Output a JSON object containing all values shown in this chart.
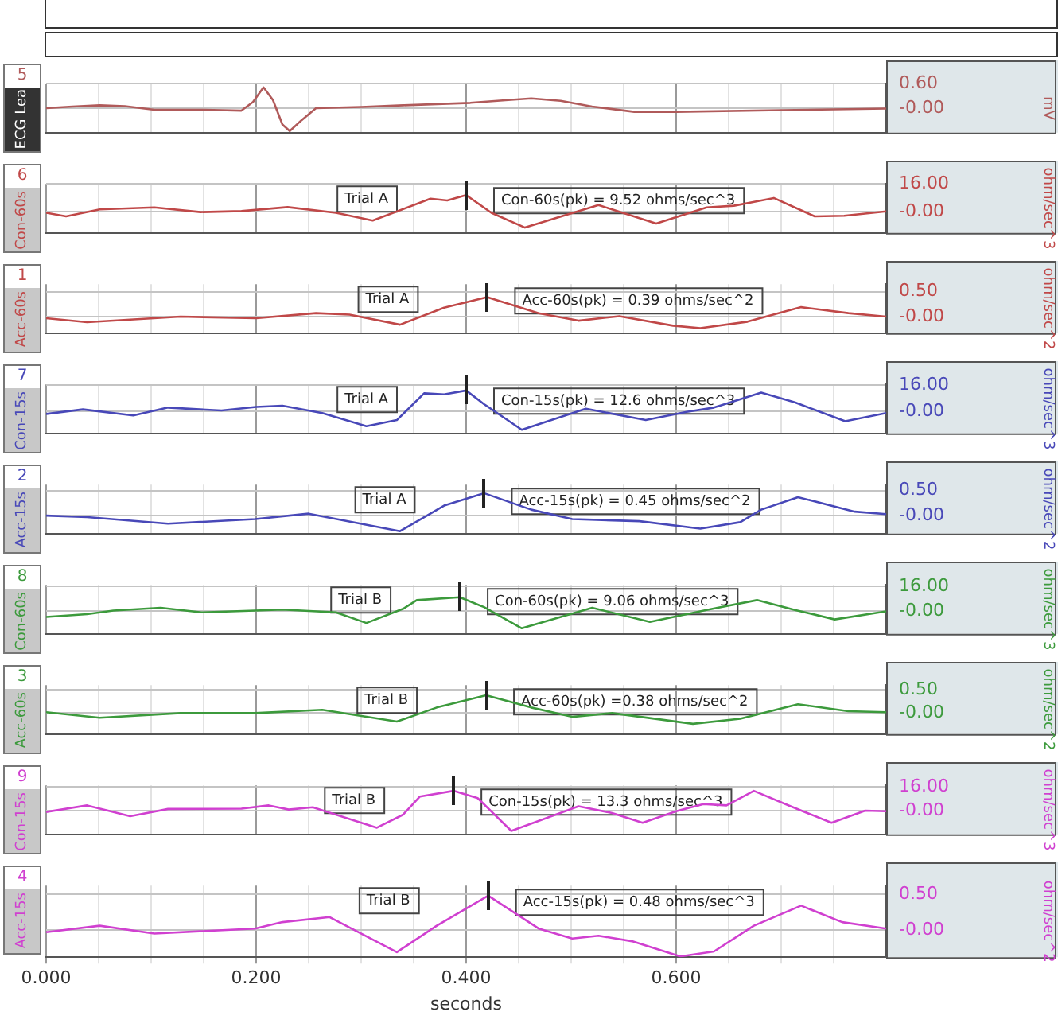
{
  "chart_data": [
    {
      "type": "line",
      "title": "5",
      "ylabel": "mV",
      "legend": "left",
      "grid": true,
      "tick_labels": "y",
      "marker": "none",
      "xlim": [
        0,
        0.8
      ],
      "xticks": [
        0,
        0.05,
        0.1,
        0.15,
        0.2,
        0.25,
        0.3,
        0.35,
        0.4,
        0.45,
        0.5,
        0.55,
        0.6,
        0.65,
        0.7,
        0.75
      ],
      "ylim": [
        -0.6,
        0.6
      ],
      "yticks": [
        {
          "value": 0,
          "label": "-0.00"
        },
        {
          "value": 0.6,
          "label": "0.60"
        }
      ],
      "series": [
        {
          "name": "ECG Lea",
          "color": "#b05a5a",
          "x": [
            0,
            0.025,
            0.051,
            0.075,
            0.103,
            0.15,
            0.186,
            0.197,
            0.207,
            0.216,
            0.225,
            0.232,
            0.243,
            0.257,
            0.3,
            0.34,
            0.404,
            0.44,
            0.462,
            0.49,
            0.52,
            0.56,
            0.6,
            0.7,
            0.8
          ],
          "values": [
            0,
            0.04,
            0.07,
            0.05,
            -0.04,
            -0.04,
            -0.06,
            0.15,
            0.51,
            0.2,
            -0.4,
            -0.56,
            -0.3,
            0,
            0.03,
            0.07,
            0.13,
            0.2,
            0.24,
            0.18,
            0.04,
            -0.09,
            -0.09,
            -0.05,
            -0.01
          ]
        }
      ]
    },
    {
      "type": "line",
      "title": "6",
      "ylabel": "ohm/sec^3",
      "legend": "left",
      "grid": true,
      "tick_labels": "y",
      "marker": "none",
      "xlim": [
        0,
        0.8
      ],
      "xticks": [
        0,
        0.05,
        0.1,
        0.15,
        0.2,
        0.25,
        0.3,
        0.35,
        0.4,
        0.45,
        0.5,
        0.55,
        0.6,
        0.65,
        0.7,
        0.75
      ],
      "ylim": [
        -12.5,
        16
      ],
      "yticks": [
        {
          "value": 0,
          "label": "-0.00"
        },
        {
          "value": 16,
          "label": "16.00"
        }
      ],
      "annotations": [
        "Trial A",
        {
          "text": "Con-60s(pk) = 9.52 ohms/sec^3",
          "x": 0.4,
          "y": 9.52
        }
      ],
      "series": [
        {
          "name": "Con-60s",
          "color": "#c04848",
          "x": [
            0,
            0.019,
            0.051,
            0.103,
            0.147,
            0.186,
            0.23,
            0.276,
            0.311,
            0.366,
            0.382,
            0.4,
            0.424,
            0.456,
            0.526,
            0.581,
            0.629,
            0.655,
            0.693,
            0.732,
            0.76,
            0.8
          ],
          "values": [
            -0.8,
            -2.9,
            1.2,
            2.3,
            -0.4,
            0.2,
            2.5,
            -0.8,
            -5.3,
            7.4,
            6.4,
            9.52,
            -0.8,
            -9.4,
            3.7,
            -7,
            2.3,
            3.3,
            7.8,
            -2.9,
            -2.5,
            0
          ]
        }
      ]
    },
    {
      "type": "line",
      "title": "1",
      "ylabel": "ohm/sec^2",
      "legend": "left",
      "grid": true,
      "tick_labels": "y",
      "marker": "none",
      "xlim": [
        0,
        0.8
      ],
      "xticks": [
        0,
        0.05,
        0.1,
        0.15,
        0.2,
        0.25,
        0.3,
        0.35,
        0.4,
        0.45,
        0.5,
        0.55,
        0.6,
        0.65,
        0.7,
        0.75
      ],
      "ylim": [
        -0.33,
        0.65
      ],
      "yticks": [
        {
          "value": 0,
          "label": "-0.00"
        },
        {
          "value": 0.5,
          "label": "0.50"
        }
      ],
      "annotations": [
        "Trial A",
        {
          "text": "Acc-60s(pk) = 0.39 ohms/sec^2",
          "x": 0.42,
          "y": 0.39
        }
      ],
      "series": [
        {
          "name": "Acc-60s",
          "color": "#c04848",
          "x": [
            0,
            0.039,
            0.128,
            0.2,
            0.257,
            0.289,
            0.337,
            0.379,
            0.42,
            0.469,
            0.507,
            0.546,
            0.597,
            0.623,
            0.668,
            0.719,
            0.764,
            0.8
          ],
          "values": [
            -0.03,
            -0.11,
            0,
            -0.03,
            0.07,
            0.04,
            -0.16,
            0.18,
            0.39,
            0.07,
            -0.08,
            0.01,
            -0.18,
            -0.23,
            -0.1,
            0.19,
            0.07,
            0
          ]
        }
      ]
    },
    {
      "type": "line",
      "title": "7",
      "ylabel": "ohm/sec^3",
      "legend": "left",
      "grid": true,
      "tick_labels": "y",
      "marker": "none",
      "xlim": [
        0,
        0.8
      ],
      "xticks": [
        0,
        0.05,
        0.1,
        0.15,
        0.2,
        0.25,
        0.3,
        0.35,
        0.4,
        0.45,
        0.5,
        0.55,
        0.6,
        0.65,
        0.7,
        0.75
      ],
      "ylim": [
        -13.5,
        16.3
      ],
      "yticks": [
        {
          "value": 0,
          "label": "-0.00"
        },
        {
          "value": 16,
          "label": "16.00"
        }
      ],
      "annotations": [
        "Trial A",
        {
          "text": "Con-15s(pk) = 12.6 ohms/sec^3",
          "x": 0.4,
          "y": 12.6
        }
      ],
      "series": [
        {
          "name": "Con-15s",
          "color": "#4848b8",
          "x": [
            0,
            0.035,
            0.083,
            0.116,
            0.167,
            0.2,
            0.225,
            0.263,
            0.305,
            0.334,
            0.36,
            0.379,
            0.4,
            0.417,
            0.453,
            0.514,
            0.571,
            0.61,
            0.636,
            0.681,
            0.713,
            0.761,
            0.8
          ],
          "values": [
            -1.7,
            1.1,
            -2.6,
            2.2,
            0.4,
            2.6,
            3.3,
            -1.1,
            -9.1,
            -5.4,
            10.9,
            10.2,
            12.6,
            4.3,
            -11.3,
            1.5,
            -5.4,
            -0.4,
            2.2,
            11.3,
            5.4,
            -6.1,
            -1.1
          ]
        }
      ]
    },
    {
      "type": "line",
      "title": "2",
      "ylabel": "ohm/sec^2",
      "legend": "left",
      "grid": true,
      "tick_labels": "y",
      "marker": "none",
      "xlim": [
        0,
        0.8
      ],
      "xticks": [
        0,
        0.05,
        0.1,
        0.15,
        0.2,
        0.25,
        0.3,
        0.35,
        0.4,
        0.45,
        0.5,
        0.55,
        0.6,
        0.65,
        0.7,
        0.75
      ],
      "ylim": [
        -0.36,
        0.62
      ],
      "yticks": [
        {
          "value": 0,
          "label": "-0.00"
        },
        {
          "value": 0.5,
          "label": "0.50"
        }
      ],
      "annotations": [
        "Trial A",
        {
          "text": "Acc-15s(pk) = 0.45 ohms/sec^2",
          "x": 0.417,
          "y": 0.45
        }
      ],
      "series": [
        {
          "name": "Acc-15s",
          "color": "#4848b8",
          "x": [
            0,
            0.039,
            0.116,
            0.199,
            0.25,
            0.337,
            0.379,
            0.417,
            0.462,
            0.501,
            0.565,
            0.623,
            0.661,
            0.681,
            0.716,
            0.77,
            0.8
          ],
          "values": [
            0,
            -0.03,
            -0.16,
            -0.07,
            0.04,
            -0.31,
            0.2,
            0.45,
            0.12,
            -0.07,
            -0.11,
            -0.26,
            -0.13,
            0.12,
            0.37,
            0.08,
            0.03
          ]
        }
      ]
    },
    {
      "type": "line",
      "title": "8",
      "ylabel": "ohm/sec^3",
      "legend": "left",
      "grid": true,
      "tick_labels": "y",
      "marker": "none",
      "xlim": [
        0,
        0.8
      ],
      "xticks": [
        0,
        0.05,
        0.1,
        0.15,
        0.2,
        0.25,
        0.3,
        0.35,
        0.4,
        0.45,
        0.5,
        0.55,
        0.6,
        0.65,
        0.7,
        0.75
      ],
      "ylim": [
        -14.5,
        17
      ],
      "yticks": [
        {
          "value": 0,
          "label": "-0.00"
        },
        {
          "value": 16,
          "label": "16.00"
        }
      ],
      "annotations": [
        "Trial B",
        {
          "text": "Con-60s(pk) = 9.06 ohms/sec^3",
          "x": 0.394,
          "y": 9.06
        }
      ],
      "series": [
        {
          "name": "Con-60s",
          "color": "#3c9a3c",
          "x": [
            0,
            0.039,
            0.064,
            0.109,
            0.148,
            0.199,
            0.225,
            0.276,
            0.305,
            0.34,
            0.353,
            0.394,
            0.417,
            0.453,
            0.52,
            0.575,
            0.629,
            0.677,
            0.713,
            0.751,
            0.8
          ],
          "values": [
            -3.6,
            -1.8,
            0.5,
            2.3,
            -0.7,
            0.5,
            1.1,
            -0.7,
            -7.5,
            1.6,
            7.2,
            9.06,
            2.7,
            -10.9,
            2.3,
            -6.8,
            0.9,
            7.2,
            0.9,
            -5.2,
            0
          ]
        }
      ]
    },
    {
      "type": "line",
      "title": "3",
      "ylabel": "ohm/sec^2",
      "legend": "left",
      "grid": true,
      "tick_labels": "y",
      "marker": "none",
      "xlim": [
        0,
        0.8
      ],
      "xticks": [
        0,
        0.05,
        0.1,
        0.15,
        0.2,
        0.25,
        0.3,
        0.35,
        0.4,
        0.45,
        0.5,
        0.55,
        0.6,
        0.65,
        0.7,
        0.75
      ],
      "ylim": [
        -0.45,
        0.6
      ],
      "yticks": [
        {
          "value": 0,
          "label": "-0.00"
        },
        {
          "value": 0.5,
          "label": "0.50"
        }
      ],
      "annotations": [
        "Trial B",
        {
          "text": "Acc-60s(pk) =0.38 ohms/sec^2",
          "x": 0.419,
          "y": 0.38
        }
      ],
      "series": [
        {
          "name": "Acc-60s",
          "color": "#3c9a3c",
          "x": [
            0,
            0.051,
            0.128,
            0.199,
            0.263,
            0.334,
            0.372,
            0.419,
            0.462,
            0.501,
            0.539,
            0.616,
            0.661,
            0.716,
            0.764,
            0.8
          ],
          "values": [
            0.02,
            -0.1,
            0,
            0,
            0.07,
            -0.18,
            0.12,
            0.38,
            0.12,
            -0.08,
            0,
            -0.23,
            -0.12,
            0.19,
            0.04,
            0.02
          ]
        }
      ]
    },
    {
      "type": "line",
      "title": "9",
      "ylabel": "ohm/sec^3",
      "legend": "left",
      "grid": true,
      "tick_labels": "y",
      "marker": "none",
      "xlim": [
        0,
        0.8
      ],
      "xticks": [
        0,
        0.05,
        0.1,
        0.15,
        0.2,
        0.25,
        0.3,
        0.35,
        0.4,
        0.45,
        0.5,
        0.55,
        0.6,
        0.65,
        0.7,
        0.75
      ],
      "ylim": [
        -16,
        17
      ],
      "yticks": [
        {
          "value": 0,
          "label": "-0.00"
        },
        {
          "value": 16,
          "label": "16.00"
        }
      ],
      "annotations": [
        "Trial B",
        {
          "text": "Con-15s(pk) = 13.3 ohms/sec^3",
          "x": 0.388,
          "y": 13.3
        }
      ],
      "series": [
        {
          "name": "Con-15s",
          "color": "#d040d0",
          "x": [
            0,
            0.039,
            0.08,
            0.116,
            0.186,
            0.212,
            0.231,
            0.254,
            0.315,
            0.34,
            0.356,
            0.388,
            0.411,
            0.443,
            0.507,
            0.539,
            0.568,
            0.6,
            0.626,
            0.648,
            0.674,
            0.709,
            0.748,
            0.78,
            0.8
          ],
          "values": [
            -0.9,
            3.5,
            -3.8,
            1.1,
            1.3,
            3.5,
            0.7,
            2.2,
            -11.5,
            -2.7,
            9.5,
            13.3,
            8.4,
            -13.7,
            2.9,
            -1.6,
            -8.2,
            -0.4,
            4.4,
            3.5,
            13.3,
            2.9,
            -8.2,
            0,
            -0.4
          ]
        }
      ]
    },
    {
      "type": "line",
      "title": "4",
      "ylabel": "ohm/sec^2",
      "xlabel": "seconds",
      "legend": "left",
      "grid": true,
      "marker": "none",
      "xlim": [
        0,
        0.8
      ],
      "xticks": [
        {
          "value": 0,
          "label": "0.000"
        },
        {
          "value": 0.05,
          "label": null
        },
        {
          "value": 0.1,
          "label": null
        },
        {
          "value": 0.15,
          "label": null
        },
        {
          "value": 0.2,
          "label": "0.200"
        },
        {
          "value": 0.25,
          "label": null
        },
        {
          "value": 0.3,
          "label": null
        },
        {
          "value": 0.35,
          "label": null
        },
        {
          "value": 0.4,
          "label": "0.400"
        },
        {
          "value": 0.45,
          "label": null
        },
        {
          "value": 0.5,
          "label": null
        },
        {
          "value": 0.55,
          "label": null
        },
        {
          "value": 0.6,
          "label": "0.600"
        },
        {
          "value": 0.65,
          "label": null
        },
        {
          "value": 0.7,
          "label": null
        },
        {
          "value": 0.75,
          "label": null
        }
      ],
      "ylim": [
        -0.38,
        0.62
      ],
      "yticks": [
        {
          "value": 0,
          "label": "-0.00"
        },
        {
          "value": 0.5,
          "label": "0.50"
        }
      ],
      "annotations": [
        "Trial B",
        {
          "text": "Acc-15s(pk) = 0.48 ohms/sec^3",
          "x": 0.421,
          "y": 0.48
        }
      ],
      "series": [
        {
          "name": "Acc-15s",
          "color": "#d040d0",
          "x": [
            0,
            0.051,
            0.103,
            0.199,
            0.225,
            0.27,
            0.334,
            0.372,
            0.421,
            0.469,
            0.501,
            0.526,
            0.559,
            0.604,
            0.636,
            0.674,
            0.719,
            0.758,
            0.8
          ],
          "values": [
            -0.03,
            0.06,
            -0.05,
            0.02,
            0.11,
            0.18,
            -0.31,
            0.06,
            0.48,
            0.02,
            -0.12,
            -0.08,
            -0.16,
            -0.37,
            -0.3,
            0.06,
            0.34,
            0.11,
            0.02
          ]
        }
      ]
    }
  ]
}
